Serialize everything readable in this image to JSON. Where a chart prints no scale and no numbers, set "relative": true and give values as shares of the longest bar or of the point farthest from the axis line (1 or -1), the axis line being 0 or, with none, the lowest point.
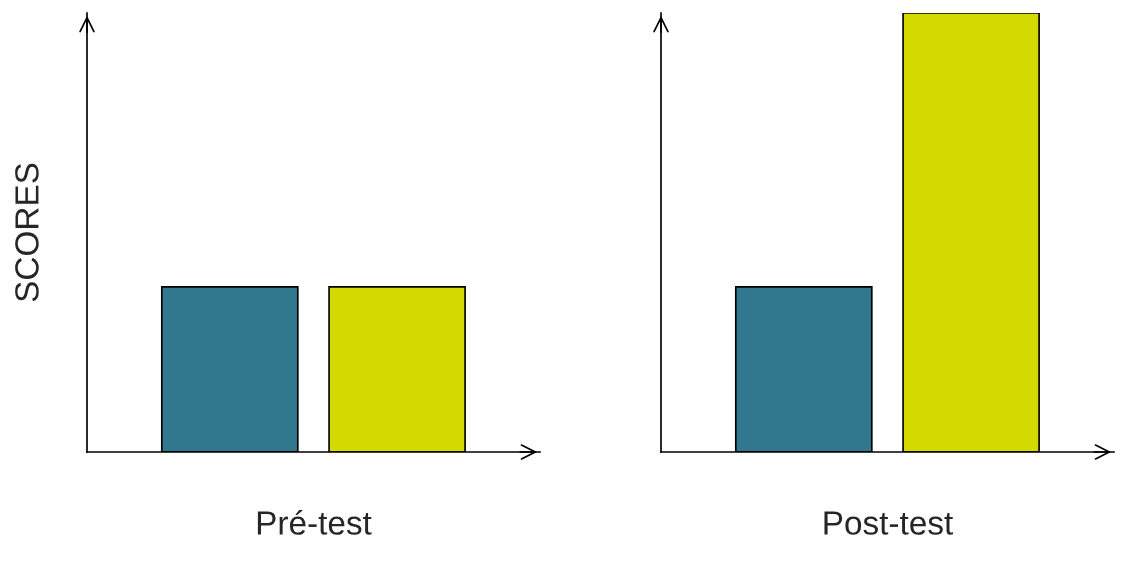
{
  "chart_data": {
    "type": "bar",
    "ylabel": "SCORES",
    "relative": true,
    "categories": [
      "Pré-test",
      "Post-test"
    ],
    "series": [
      {
        "color": "#31788f",
        "values": [
          0.376,
          0.376
        ]
      },
      {
        "color": "#d4da00",
        "values": [
          0.376,
          1
        ]
      }
    ]
  }
}
